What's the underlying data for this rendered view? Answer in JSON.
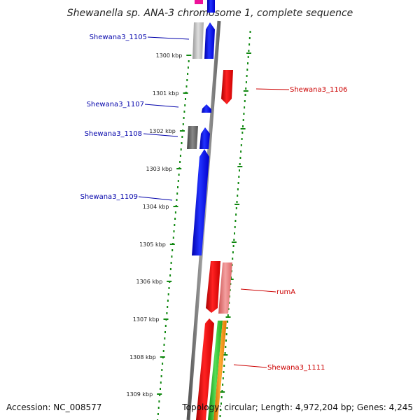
{
  "title": "Shewanella sp. ANA-3 chromosome 1, complete sequence",
  "footer": {
    "accession": "Accession: NC_008577",
    "topology": "Topology: circular; Length: 4,972,204 bp; Genes: 4,245"
  },
  "ticks": [
    {
      "kbp": 1300,
      "label": "1300 kbp"
    },
    {
      "kbp": 1301,
      "label": "1301 kbp"
    },
    {
      "kbp": 1302,
      "label": "1302 kbp"
    },
    {
      "kbp": 1303,
      "label": "1303 kbp"
    },
    {
      "kbp": 1304,
      "label": "1304 kbp"
    },
    {
      "kbp": 1305,
      "label": "1305 kbp"
    },
    {
      "kbp": 1306,
      "label": "1306 kbp"
    },
    {
      "kbp": 1307,
      "label": "1307 kbp"
    },
    {
      "kbp": 1308,
      "label": "1308 kbp"
    },
    {
      "kbp": 1309,
      "label": "1309 kbp"
    }
  ],
  "genes": [
    {
      "name": "Shewana3_1105",
      "side": "left"
    },
    {
      "name": "Shewana3_1106",
      "side": "right"
    },
    {
      "name": "Shewana3_1107",
      "side": "left"
    },
    {
      "name": "Shewana3_1108",
      "side": "left"
    },
    {
      "name": "Shewana3_1109",
      "side": "left"
    },
    {
      "name": "rumA",
      "side": "right"
    },
    {
      "name": "Shewana3_1111",
      "side": "right"
    }
  ],
  "colors": {
    "forward_cds": "#0000ee",
    "reverse_cds": "#ee0000",
    "pseudo": "#888888",
    "rna": "#22aa22",
    "other": "#ff8800",
    "magenta": "#ee1199",
    "tick": "#118811",
    "backbone": "#777777"
  }
}
